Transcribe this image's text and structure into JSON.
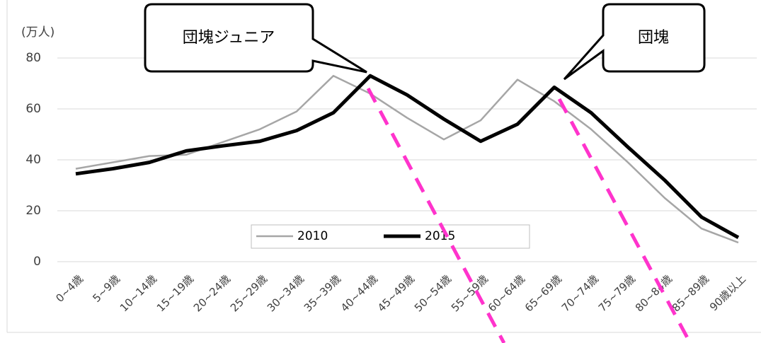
{
  "chart_data": {
    "type": "line",
    "y_label": "(万人)",
    "categories": [
      "0~4歳",
      "5~9歳",
      "10~14歳",
      "15~19歳",
      "20~24歳",
      "25~29歳",
      "30~34歳",
      "35~39歳",
      "40~44歳",
      "45~49歳",
      "50~54歳",
      "55~59歳",
      "60~64歳",
      "65~69歳",
      "70~74歳",
      "75~79歳",
      "80~84歳",
      "85~89歳",
      "90歳以上"
    ],
    "series": [
      {
        "name": "2010",
        "color": "#a6a6a6",
        "values": [
          36.5,
          39,
          41.5,
          42,
          47,
          52,
          59,
          73,
          66,
          56.5,
          48,
          55.5,
          71.5,
          63,
          52,
          39,
          25,
          13,
          7.5
        ]
      },
      {
        "name": "2015",
        "color": "#000000",
        "values": [
          34.5,
          36.5,
          39,
          43.5,
          45.5,
          47.3,
          51.5,
          58.5,
          73,
          65.5,
          56,
          47.3,
          54,
          68.5,
          58.5,
          45,
          32,
          17.5,
          9.5
        ]
      }
    ],
    "ylim": [
      0,
      80
    ],
    "yticks": [
      0,
      20,
      40,
      60,
      80
    ],
    "grid": true,
    "annotations": [
      "団塊ジュニア",
      "団塊"
    ]
  }
}
